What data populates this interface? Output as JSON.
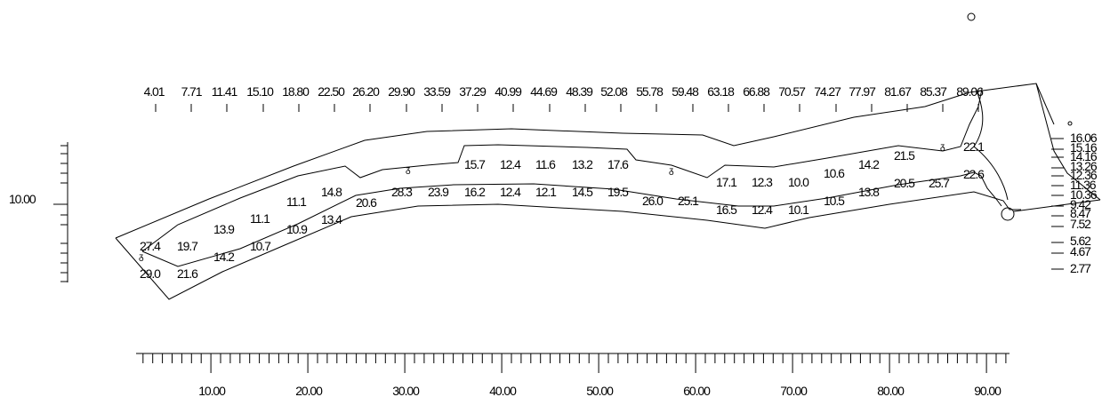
{
  "top_axis": {
    "labels": [
      "4.01",
      "7.71",
      "11.41",
      "15.10",
      "18.80",
      "22.50",
      "26.20",
      "29.90",
      "33.59",
      "37.29",
      "40.99",
      "44.69",
      "48.39",
      "52.08",
      "55.78",
      "59.48",
      "63.18",
      "66.88",
      "70.57",
      "74.27",
      "77.97",
      "81.67",
      "85.37",
      "89.06"
    ]
  },
  "bottom_axis": {
    "labels": [
      "10.00",
      "20.00",
      "30.00",
      "40.00",
      "50.00",
      "60.00",
      "70.00",
      "80.00",
      "90.00"
    ]
  },
  "left_axis": {
    "label": "10.00"
  },
  "right_axis": {
    "labels": [
      "16.06",
      "15.16",
      "14.16",
      "13.26",
      "12.36",
      "11.36",
      "10.36",
      "9.42",
      "8.47",
      "7.52",
      "5.62",
      "4.67",
      "2.77"
    ]
  },
  "diagram": {
    "upper_values": [
      "27.4",
      "19.7",
      "13.9",
      "11.1",
      "11.1",
      "14.8",
      "20.6",
      "28.3",
      "23.9",
      "16.2",
      "12.4",
      "12.1",
      "14.5",
      "19.5",
      "26.0",
      "25.1",
      "17.1",
      "12.3",
      "10.0",
      "10.6",
      "14.2",
      "21.5",
      "22.1"
    ],
    "top_values": [
      "15.7",
      "12.4",
      "11.6",
      "13.2",
      "17.6"
    ],
    "lower_values": [
      "29.0",
      "21.6",
      "14.2",
      "10.7",
      "10.9",
      "13.4",
      "16.5",
      "12.4",
      "10.1",
      "10.5",
      "13.8",
      "20.5",
      "25.7",
      "22.6"
    ]
  }
}
